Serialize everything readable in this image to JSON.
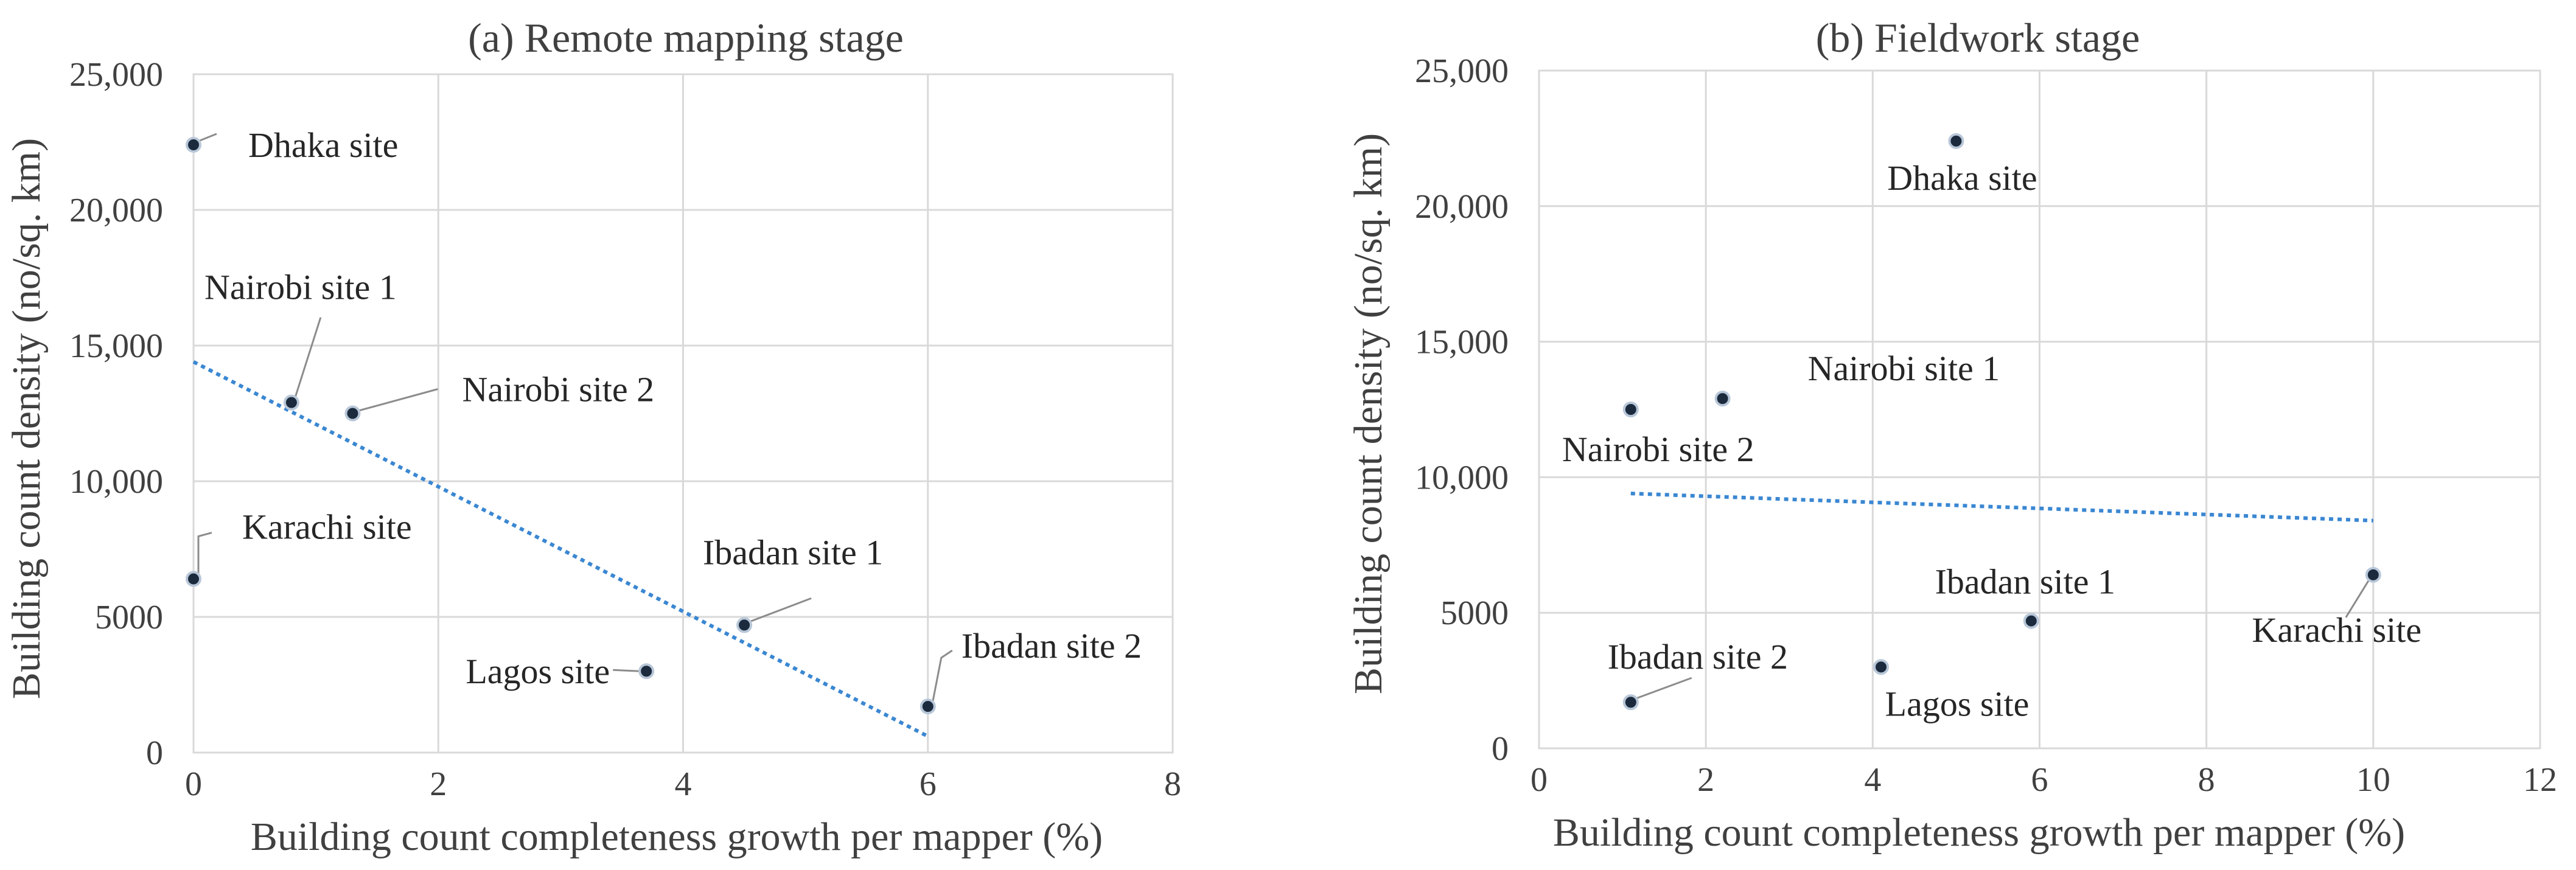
{
  "colors": {
    "marker": "#1b2a3d",
    "trend": "#3a87d2"
  },
  "chart_data": [
    {
      "type": "scatter",
      "title": "(a) Remote mapping stage",
      "xlabel": "Building count completeness growth per mapper (%)",
      "ylabel": "Building count density (no/sq. km)",
      "xlim": [
        0,
        8
      ],
      "ylim": [
        0,
        25000
      ],
      "xticks": [
        "0",
        "2",
        "4",
        "6",
        "8"
      ],
      "yticks": [
        "0",
        "5000",
        "10,000",
        "15,000",
        "20,000",
        "25,000"
      ],
      "grid": true,
      "points": [
        {
          "label": "Dhaka site",
          "x": 0,
          "y": 22400
        },
        {
          "label": "Nairobi site 1",
          "x": 0.8,
          "y": 12900
        },
        {
          "label": "Nairobi site 2",
          "x": 1.3,
          "y": 12500
        },
        {
          "label": "Karachi site",
          "x": 0,
          "y": 6400
        },
        {
          "label": "Ibadan site 1",
          "x": 4.5,
          "y": 4700
        },
        {
          "label": "Lagos site",
          "x": 3.7,
          "y": 3000
        },
        {
          "label": "Ibadan site 2",
          "x": 6,
          "y": 1700
        }
      ],
      "trendline": {
        "style": "linear, dotted",
        "x": [
          0,
          6
        ],
        "y": [
          14400,
          600
        ]
      }
    },
    {
      "type": "scatter",
      "title": "(b) Fieldwork stage",
      "xlabel": "Building count completeness growth per mapper (%)",
      "ylabel": "Building count density (no/sq. km)",
      "xlim": [
        0,
        12
      ],
      "ylim": [
        0,
        25000
      ],
      "xticks": [
        "0",
        "2",
        "4",
        "6",
        "8",
        "10",
        "12"
      ],
      "yticks": [
        "0",
        "5000",
        "10,000",
        "15,000",
        "20,000",
        "25,000"
      ],
      "grid": true,
      "points": [
        {
          "label": "Dhaka site",
          "x": 5,
          "y": 22400
        },
        {
          "label": "Nairobi site 1",
          "x": 2.2,
          "y": 12900
        },
        {
          "label": "Nairobi site 2",
          "x": 1.1,
          "y": 12500
        },
        {
          "label": "Ibadan site 1",
          "x": 5.9,
          "y": 4700
        },
        {
          "label": "Karachi site",
          "x": 10,
          "y": 6400
        },
        {
          "label": "Lagos site",
          "x": 4.1,
          "y": 3000
        },
        {
          "label": "Ibadan site 2",
          "x": 1.1,
          "y": 1700
        }
      ],
      "trendline": {
        "style": "linear, dotted",
        "x": [
          1.1,
          10
        ],
        "y": [
          9400,
          8400
        ]
      }
    }
  ]
}
